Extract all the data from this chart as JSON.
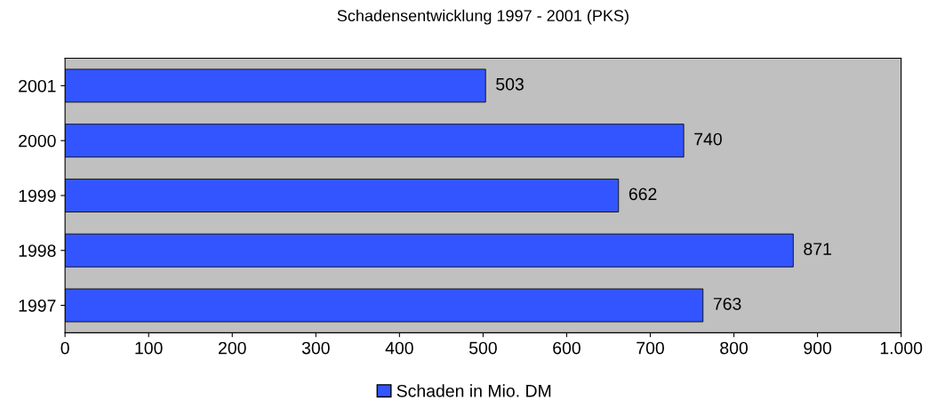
{
  "chart_data": {
    "type": "bar",
    "title": "Schadensentwicklung 1997 - 2001 (PKS)",
    "orientation": "horizontal",
    "categories": [
      "2001",
      "2000",
      "1999",
      "1998",
      "1997"
    ],
    "series": [
      {
        "name": "Schaden in Mio. DM",
        "color": "#3355ff",
        "values": [
          503,
          740,
          662,
          871,
          763
        ]
      }
    ],
    "xlim": [
      0,
      1000
    ],
    "xticks": [
      0,
      100,
      200,
      300,
      400,
      500,
      600,
      700,
      800,
      900,
      {
        "value": 1000,
        "label": "1.000"
      }
    ],
    "data_labels": true,
    "legend": "bottom",
    "grid": false
  }
}
